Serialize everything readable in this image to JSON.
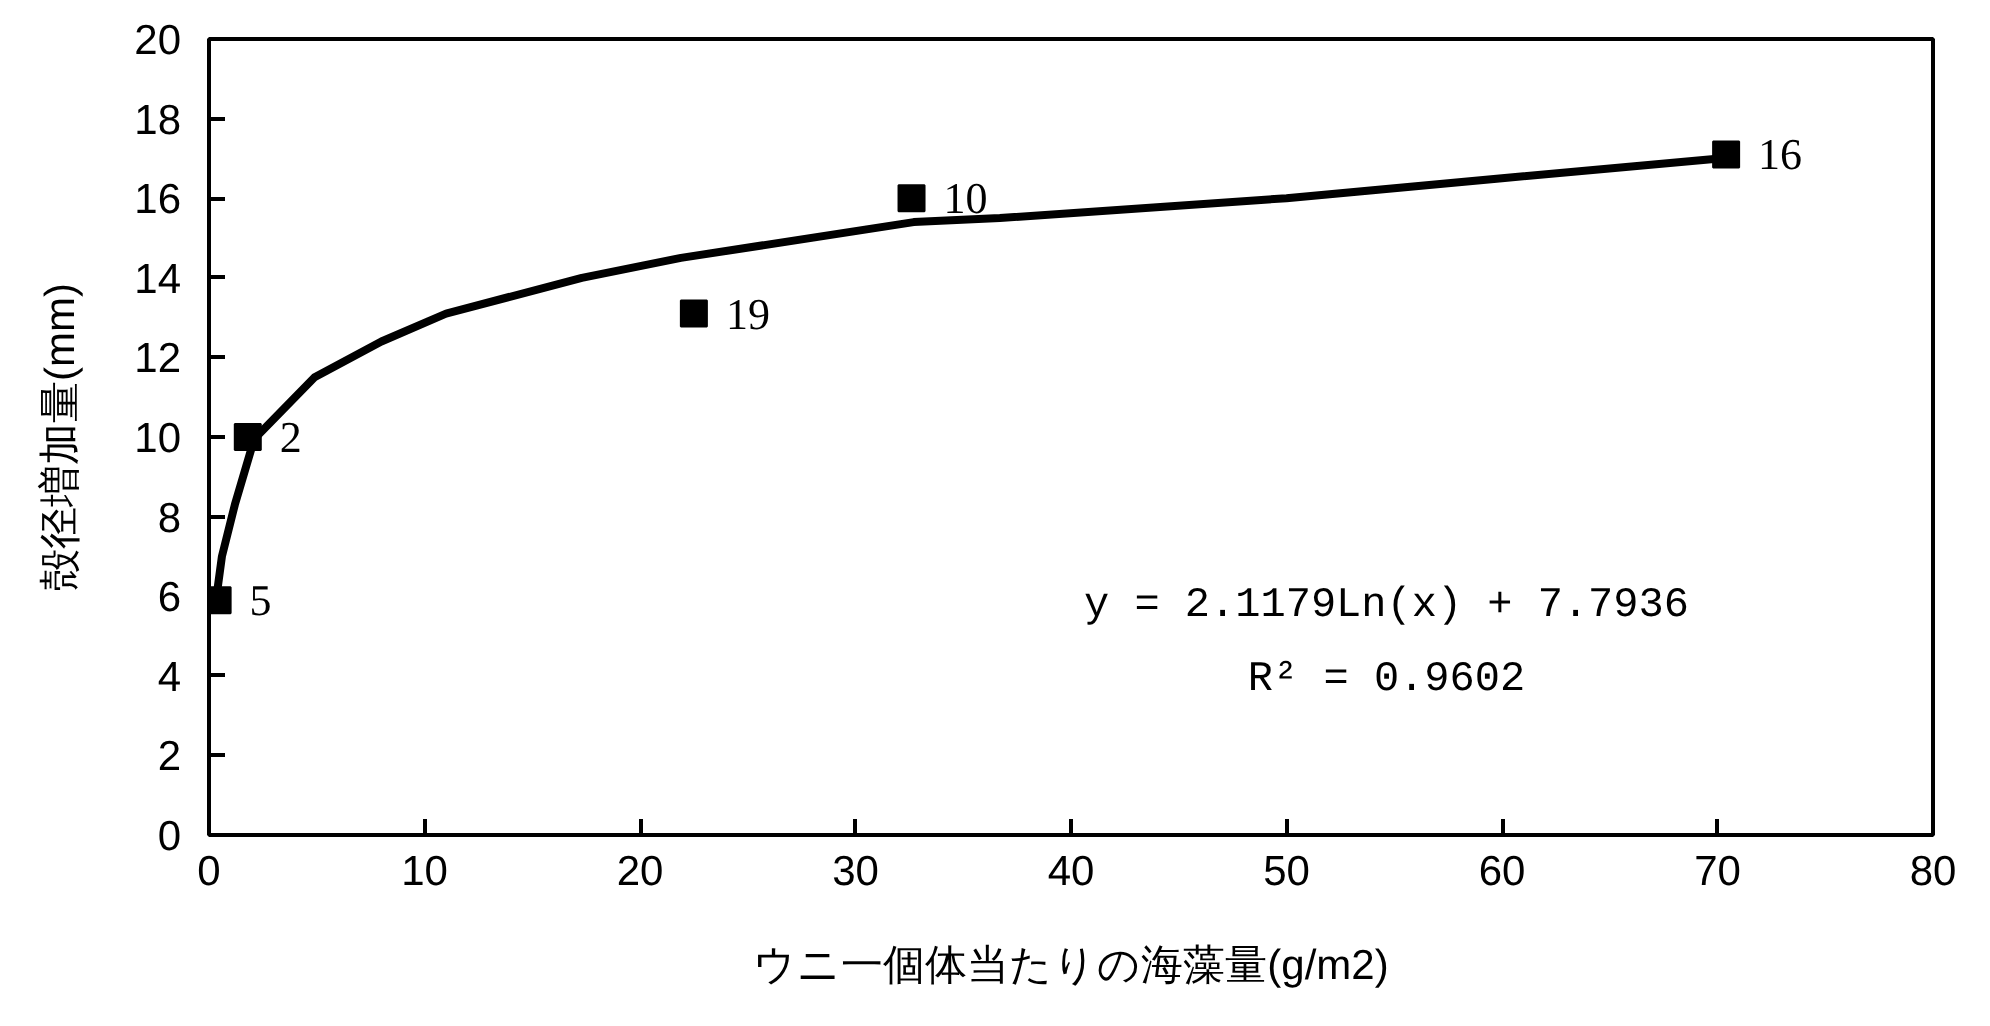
{
  "chart_data": {
    "type": "scatter",
    "xlabel": "ウニ一個体当たりの海藻量(g/m2)",
    "ylabel": "殻径増加量(mm)",
    "xlim": [
      0,
      80
    ],
    "ylim": [
      0,
      20
    ],
    "xticks": [
      0,
      10,
      20,
      30,
      40,
      50,
      60,
      70,
      80
    ],
    "yticks": [
      0,
      2,
      4,
      6,
      8,
      10,
      12,
      14,
      16,
      18,
      20
    ],
    "series": [
      {
        "marker": "square",
        "color": "#000000",
        "x": [
          0.4,
          1.8,
          22.5,
          32.6,
          70.4
        ],
        "values": [
          5.9,
          10.0,
          13.1,
          16.0,
          17.1
        ]
      },
      {
        "type": "line",
        "line_style": "solid",
        "color": "#000000",
        "x": [
          0.25,
          0.6,
          1.2,
          2.1,
          4.9,
          8.0,
          11.0,
          17.3,
          21.9,
          32.7,
          36.7,
          50,
          60,
          70.1
        ],
        "values": [
          5.6,
          7.0,
          8.3,
          9.95,
          11.5,
          12.4,
          13.1,
          14.0,
          14.5,
          15.4,
          15.5,
          16.0,
          16.5,
          17.0
        ]
      }
    ],
    "annotations": [
      {
        "text": "5",
        "x": 0.4,
        "y": 5.9
      },
      {
        "text": "2",
        "x": 1.8,
        "y": 10.0
      },
      {
        "text": "19",
        "x": 22.5,
        "y": 13.1
      },
      {
        "text": "10",
        "x": 32.6,
        "y": 16.0
      },
      {
        "text": "16",
        "x": 70.4,
        "y": 17.1
      },
      "y = 2.1179Ln(x) + 7.7936",
      "R² = 0.9602"
    ]
  }
}
